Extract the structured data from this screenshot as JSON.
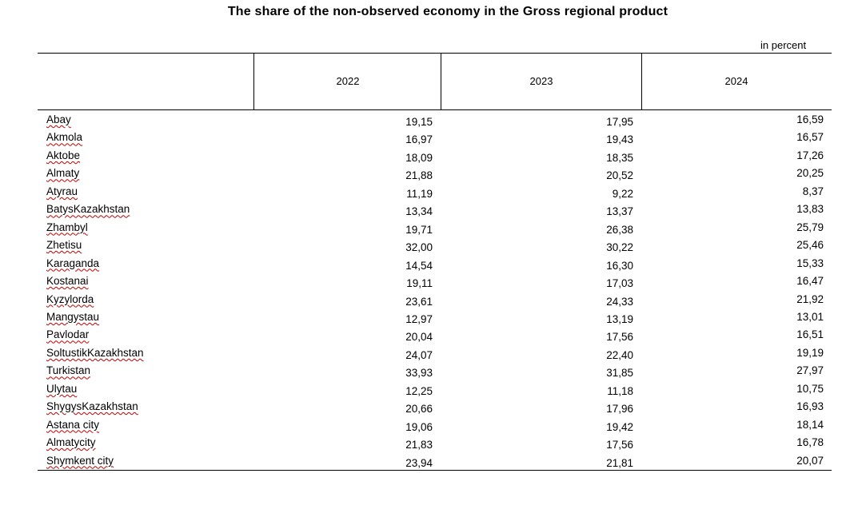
{
  "title": "The share of the non-observed economy in the Gross regional product",
  "unit": "in percent",
  "columns": [
    "2022",
    "2023",
    "2024"
  ],
  "rows": [
    {
      "region": "Abay",
      "values": [
        "19,15",
        "17,95",
        "16,59"
      ]
    },
    {
      "region": "Akmola",
      "values": [
        "16,97",
        "19,43",
        "16,57"
      ]
    },
    {
      "region": "Aktobe",
      "values": [
        "18,09",
        "18,35",
        "17,26"
      ]
    },
    {
      "region": "Almaty",
      "values": [
        "21,88",
        "20,52",
        "20,25"
      ]
    },
    {
      "region": "Atyrau",
      "values": [
        "11,19",
        "9,22",
        "8,37"
      ]
    },
    {
      "region": "BatysKazakhstan",
      "values": [
        "13,34",
        "13,37",
        "13,83"
      ]
    },
    {
      "region": "Zhambyl",
      "values": [
        "19,71",
        "26,38",
        "25,79"
      ]
    },
    {
      "region": "Zhetisu",
      "values": [
        "32,00",
        "30,22",
        "25,46"
      ]
    },
    {
      "region": "Karaganda",
      "values": [
        "14,54",
        "16,30",
        "15,33"
      ]
    },
    {
      "region": "Kostanai",
      "values": [
        "19,11",
        "17,03",
        "16,47"
      ]
    },
    {
      "region": "Kyzylorda",
      "values": [
        "23,61",
        "24,33",
        "21,92"
      ]
    },
    {
      "region": "Mangystau",
      "values": [
        "12,97",
        "13,19",
        "13,01"
      ]
    },
    {
      "region": "Pavlodar",
      "values": [
        "20,04",
        "17,56",
        "16,51"
      ]
    },
    {
      "region": "SoltustikKazakhstan",
      "values": [
        "24,07",
        "22,40",
        "19,19"
      ]
    },
    {
      "region": "Turkistan",
      "values": [
        "33,93",
        "31,85",
        "27,97"
      ]
    },
    {
      "region": "Ulytau",
      "values": [
        "12,25",
        "11,18",
        "10,75"
      ]
    },
    {
      "region": "ShygysKazakhstan",
      "values": [
        "20,66",
        "17,96",
        "16,93"
      ]
    },
    {
      "region": "Astana city",
      "values": [
        "19,06",
        "19,42",
        "18,14"
      ]
    },
    {
      "region": "Almatycity",
      "values": [
        "21,83",
        "17,56",
        "16,78"
      ]
    },
    {
      "region": "Shymkent city",
      "values": [
        "23,94",
        "21,81",
        "20,07"
      ]
    }
  ]
}
